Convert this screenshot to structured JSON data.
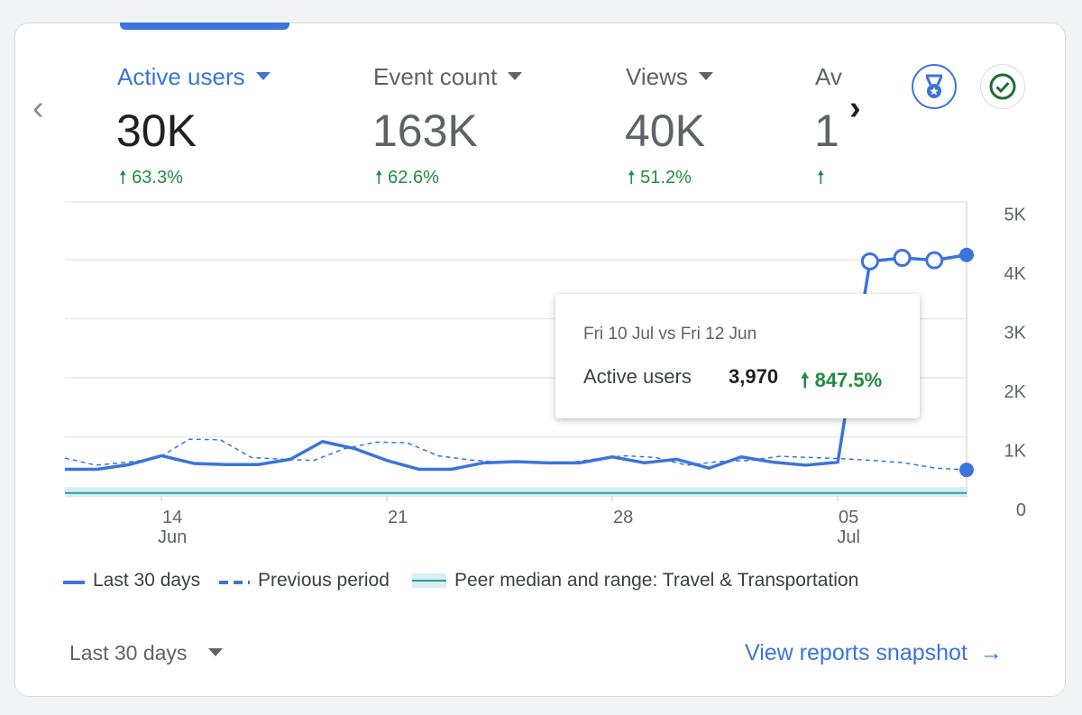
{
  "metrics": [
    {
      "label": "Active users",
      "value": "30K",
      "change": "63.3%",
      "active": true
    },
    {
      "label": "Event count",
      "value": "163K",
      "change": "62.6%",
      "active": false
    },
    {
      "label": "Views",
      "value": "40K",
      "change": "51.2%",
      "active": false
    },
    {
      "label": "Av",
      "value": "1",
      "change": "",
      "active": false
    }
  ],
  "icons": {
    "prev": "chevron-left-icon",
    "next": "chevron-right-icon",
    "award": "award-badge-icon",
    "check": "check-circle-icon",
    "trend": "arrow-up-icon",
    "dropdown": "caret-down-icon",
    "link": "arrow-right-icon"
  },
  "colors": {
    "accent": "#3b74da",
    "positive": "#1e8e3e",
    "peer_band": "#d6eef2",
    "peer_line": "#2a9d9f"
  },
  "chart_data": {
    "type": "line",
    "y_ticks": [
      "5K",
      "4K",
      "3K",
      "2K",
      "1K",
      "0"
    ],
    "ylim": [
      0,
      5000
    ],
    "x_ticks": [
      {
        "day": "14",
        "month": "Jun",
        "index": 3
      },
      {
        "day": "21",
        "month": "",
        "index": 10
      },
      {
        "day": "28",
        "month": "",
        "index": 17
      },
      {
        "day": "05",
        "month": "Jul",
        "index": 24
      }
    ],
    "grid": true,
    "series": [
      {
        "name": "Last 30 days",
        "style": "solid",
        "values": [
          450,
          450,
          530,
          680,
          550,
          530,
          530,
          620,
          920,
          800,
          600,
          450,
          450,
          560,
          580,
          560,
          560,
          660,
          560,
          620,
          470,
          660,
          570,
          520,
          570,
          3970,
          4030,
          3990,
          4080
        ]
      },
      {
        "name": "Previous period",
        "style": "dashed",
        "values": [
          640,
          520,
          570,
          640,
          960,
          950,
          650,
          620,
          600,
          800,
          910,
          900,
          680,
          610,
          570,
          570,
          550,
          620,
          680,
          650,
          520,
          580,
          600,
          670,
          650,
          630,
          600,
          560,
          470,
          440
        ]
      }
    ],
    "peer": {
      "name": "Peer median and range: Travel & Transportation",
      "median": 50,
      "low": 0,
      "high": 150
    },
    "hollow_points": [
      25,
      26,
      27
    ],
    "endpoint_index": 28
  },
  "tooltip": {
    "title": "Fri 10 Jul vs Fri 12 Jun",
    "metric": "Active users",
    "value": "3,970",
    "change": "847.5%"
  },
  "footer": {
    "range_label": "Last 30 days",
    "link_label": "View reports snapshot"
  }
}
